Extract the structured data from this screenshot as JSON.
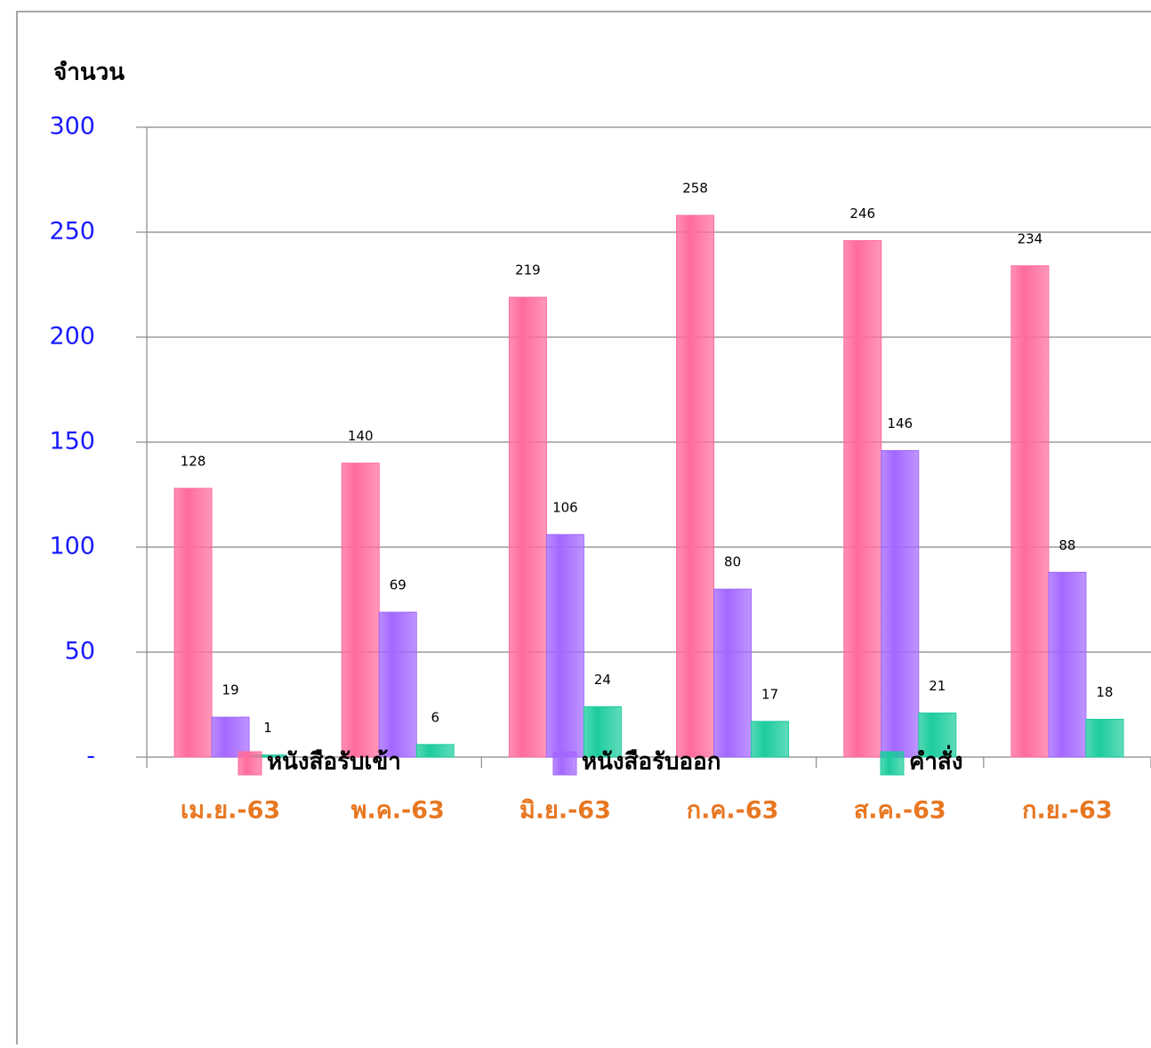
{
  "chart_data": {
    "type": "bar",
    "y_label": "จำนวน",
    "categories": [
      "เม.ย.-63",
      "พ.ค.-63",
      "มิ.ย.-63",
      "ก.ค.-63",
      "ส.ค.-63",
      "ก.ย.-63"
    ],
    "series": [
      {
        "name": "หนังสือรับเข้า",
        "color": "#ff6b9b",
        "values": [
          128,
          140,
          219,
          258,
          246,
          234
        ]
      },
      {
        "name": "หนังสือรับออก",
        "color": "#a367ff",
        "values": [
          19,
          69,
          106,
          80,
          146,
          88
        ]
      },
      {
        "name": "คำสั่ง",
        "color": "#1ccc9e",
        "values": [
          1,
          6,
          24,
          17,
          21,
          18
        ]
      }
    ],
    "ylim": [
      0,
      300
    ],
    "yticks": [
      {
        "value": 0,
        "label": "-"
      },
      50,
      100,
      150,
      200,
      250,
      300
    ],
    "grid": true,
    "legend": "bottom"
  }
}
